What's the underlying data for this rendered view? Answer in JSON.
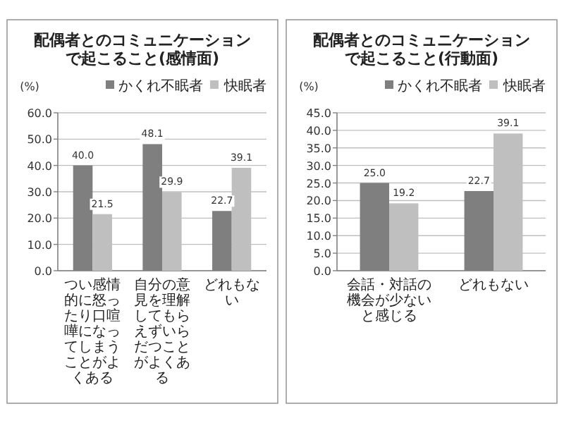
{
  "chart_data": [
    {
      "type": "bar",
      "title": "配偶者とのコミュニケーションで起こること(感情面)",
      "ylabel": "(%)",
      "categories": [
        "つい感情的に怒ったり口喧嘩になってしまうことがよくある",
        "自分の意見を理解してもらえずいらだつことがよくある",
        "どれもない"
      ],
      "series": [
        {
          "name": "かくれ不眠者",
          "color": "#7f7f7f",
          "values": [
            40.0,
            48.1,
            22.7
          ],
          "value_labels": [
            "40.0",
            "48.1",
            "22.7"
          ]
        },
        {
          "name": "快眠者",
          "color": "#bfbfbf",
          "values": [
            21.5,
            29.9,
            39.1
          ],
          "value_labels": [
            "21.5",
            "29.9",
            "39.1"
          ]
        }
      ],
      "ylim": [
        0,
        60
      ],
      "yticks": [
        {
          "value": 0,
          "label": "0.0"
        },
        {
          "value": 10,
          "label": "10.0"
        },
        {
          "value": 20,
          "label": "20.0"
        },
        {
          "value": 30,
          "label": "30.0"
        },
        {
          "value": 40,
          "label": "40.0"
        },
        {
          "value": 50,
          "label": "50.0"
        },
        {
          "value": 60,
          "label": "60.0"
        }
      ],
      "grid": "y",
      "legend": "top right"
    },
    {
      "type": "bar",
      "title": "配偶者とのコミュニケーションで起こること(行動面)",
      "ylabel": "(%)",
      "categories": [
        "会話・対話の機会が少ないと感じる",
        "どれもない"
      ],
      "series": [
        {
          "name": "かくれ不眠者",
          "color": "#7f7f7f",
          "values": [
            25.0,
            22.7
          ],
          "value_labels": [
            "25.0",
            "22.7"
          ]
        },
        {
          "name": "快眠者",
          "color": "#bfbfbf",
          "values": [
            19.2,
            39.1
          ],
          "value_labels": [
            "19.2",
            "39.1"
          ]
        }
      ],
      "ylim": [
        0,
        45
      ],
      "yticks": [
        {
          "value": 0,
          "label": "0.0"
        },
        {
          "value": 5,
          "label": "5.0"
        },
        {
          "value": 10,
          "label": "10.0"
        },
        {
          "value": 15,
          "label": "15.0"
        },
        {
          "value": 20,
          "label": "20.0"
        },
        {
          "value": 25,
          "label": "25.0"
        },
        {
          "value": 30,
          "label": "30.0"
        },
        {
          "value": 35,
          "label": "35.0"
        },
        {
          "value": 40,
          "label": "40.0"
        },
        {
          "value": 45,
          "label": "45.0"
        }
      ],
      "grid": "y",
      "legend": "top right"
    }
  ]
}
